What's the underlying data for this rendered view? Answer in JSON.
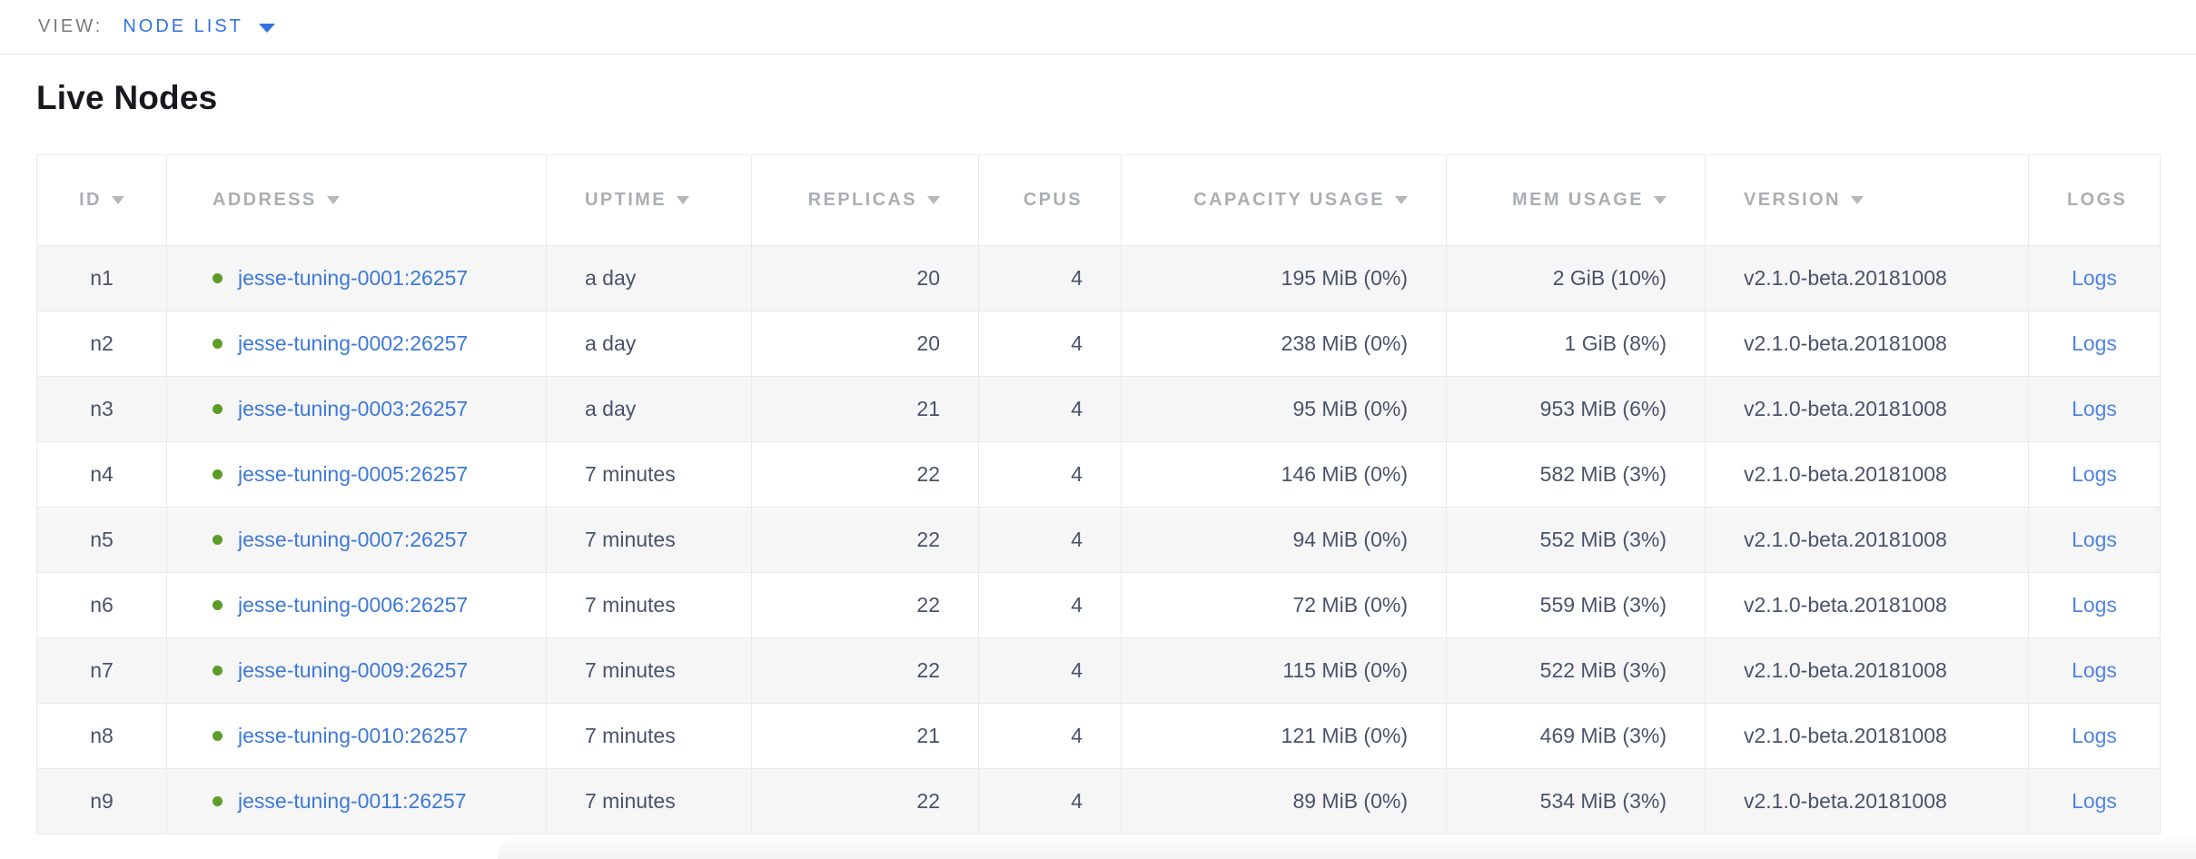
{
  "view_bar": {
    "label": "VIEW:",
    "selected_view": "NODE LIST"
  },
  "page": {
    "title": "Live Nodes"
  },
  "table": {
    "columns": [
      {
        "key": "id",
        "label": "ID",
        "sortable": true
      },
      {
        "key": "address",
        "label": "ADDRESS",
        "sortable": true
      },
      {
        "key": "uptime",
        "label": "UPTIME",
        "sortable": true
      },
      {
        "key": "replicas",
        "label": "REPLICAS",
        "sortable": true
      },
      {
        "key": "cpus",
        "label": "CPUS",
        "sortable": false
      },
      {
        "key": "capacity",
        "label": "CAPACITY USAGE",
        "sortable": true
      },
      {
        "key": "mem",
        "label": "MEM USAGE",
        "sortable": true
      },
      {
        "key": "version",
        "label": "VERSION",
        "sortable": true
      },
      {
        "key": "logs",
        "label": "LOGS",
        "sortable": false
      }
    ],
    "rows": [
      {
        "id": "n1",
        "address": "jesse-tuning-0001:26257",
        "uptime": "a day",
        "replicas": "20",
        "cpus": "4",
        "capacity": "195 MiB (0%)",
        "mem": "2 GiB (10%)",
        "version": "v2.1.0-beta.20181008",
        "logs": "Logs"
      },
      {
        "id": "n2",
        "address": "jesse-tuning-0002:26257",
        "uptime": "a day",
        "replicas": "20",
        "cpus": "4",
        "capacity": "238 MiB (0%)",
        "mem": "1 GiB (8%)",
        "version": "v2.1.0-beta.20181008",
        "logs": "Logs"
      },
      {
        "id": "n3",
        "address": "jesse-tuning-0003:26257",
        "uptime": "a day",
        "replicas": "21",
        "cpus": "4",
        "capacity": "95 MiB (0%)",
        "mem": "953 MiB (6%)",
        "version": "v2.1.0-beta.20181008",
        "logs": "Logs"
      },
      {
        "id": "n4",
        "address": "jesse-tuning-0005:26257",
        "uptime": "7 minutes",
        "replicas": "22",
        "cpus": "4",
        "capacity": "146 MiB (0%)",
        "mem": "582 MiB (3%)",
        "version": "v2.1.0-beta.20181008",
        "logs": "Logs"
      },
      {
        "id": "n5",
        "address": "jesse-tuning-0007:26257",
        "uptime": "7 minutes",
        "replicas": "22",
        "cpus": "4",
        "capacity": "94 MiB (0%)",
        "mem": "552 MiB (3%)",
        "version": "v2.1.0-beta.20181008",
        "logs": "Logs"
      },
      {
        "id": "n6",
        "address": "jesse-tuning-0006:26257",
        "uptime": "7 minutes",
        "replicas": "22",
        "cpus": "4",
        "capacity": "72 MiB (0%)",
        "mem": "559 MiB (3%)",
        "version": "v2.1.0-beta.20181008",
        "logs": "Logs"
      },
      {
        "id": "n7",
        "address": "jesse-tuning-0009:26257",
        "uptime": "7 minutes",
        "replicas": "22",
        "cpus": "4",
        "capacity": "115 MiB (0%)",
        "mem": "522 MiB (3%)",
        "version": "v2.1.0-beta.20181008",
        "logs": "Logs"
      },
      {
        "id": "n8",
        "address": "jesse-tuning-0010:26257",
        "uptime": "7 minutes",
        "replicas": "21",
        "cpus": "4",
        "capacity": "121 MiB (0%)",
        "mem": "469 MiB (3%)",
        "version": "v2.1.0-beta.20181008",
        "logs": "Logs"
      },
      {
        "id": "n9",
        "address": "jesse-tuning-0011:26257",
        "uptime": "7 minutes",
        "replicas": "22",
        "cpus": "4",
        "capacity": "89 MiB (0%)",
        "mem": "534 MiB (3%)",
        "version": "v2.1.0-beta.20181008",
        "logs": "Logs"
      }
    ]
  },
  "icons": {
    "caret-down-icon": "filled triangle ▾ (view dropdown)",
    "sort-arrow-icon": "filled triangle ▾ (sortable column)",
    "node-live-status-icon": "green circle ●"
  },
  "colors": {
    "view_accent_blue": "#3273e0",
    "address_link_blue": "#3c79d8",
    "logs_link_blue": "#4e83e6",
    "status_dot_green": "#5d9c27",
    "header_text_gray": "#abaeb3",
    "cell_text": "#49536a",
    "row_alt_background": "#f6f6f7",
    "border_gray": "#e9eaec"
  }
}
